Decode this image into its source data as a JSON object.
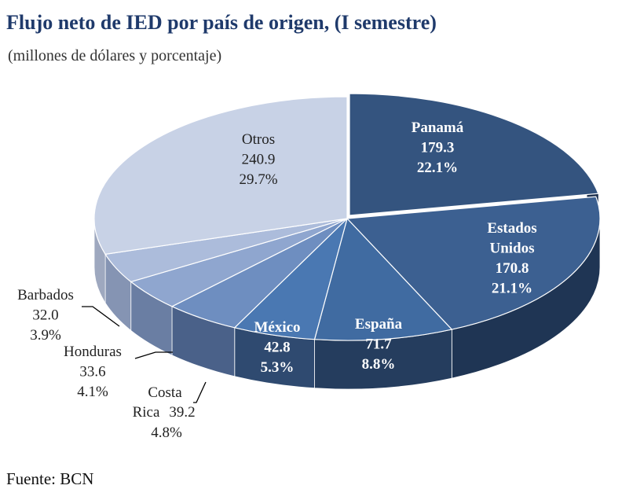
{
  "title": "Flujo neto de IED por país de origen, (I semestre)",
  "subtitle": "(millones de dólares y porcentaje)",
  "source": "Fuente: BCN",
  "chart_data": {
    "type": "pie",
    "title": "Flujo neto de IED por país de origen, (I semestre)",
    "subtitle": "(millones de dólares y porcentaje)",
    "unit": "millones de dólares",
    "slices": [
      {
        "name": "Panamá",
        "value": 179.3,
        "percent": "22.1%",
        "value_text": "179.3",
        "label_lines": [
          "Panamá"
        ],
        "color": "#34547f",
        "side": "#1c2f4d",
        "text_color": "#ffffff",
        "bold": true
      },
      {
        "name": "Estados Unidos",
        "value": 170.8,
        "percent": "21.1%",
        "value_text": "170.8",
        "label_lines": [
          "Estados",
          "Unidos"
        ],
        "color": "#3c6091",
        "side": "#1f3554",
        "text_color": "#ffffff",
        "bold": true
      },
      {
        "name": "España",
        "value": 71.7,
        "percent": "8.8%",
        "value_text": "71.7",
        "label_lines": [
          "España"
        ],
        "color": "#406ba1",
        "side": "#253d5e",
        "text_color": "#ffffff",
        "bold": true
      },
      {
        "name": "México",
        "value": 42.8,
        "percent": "5.3%",
        "value_text": "42.8",
        "label_lines": [
          "México"
        ],
        "color": "#4a78b2",
        "side": "#2f4a70",
        "text_color": "#ffffff",
        "bold": true
      },
      {
        "name": "Costa Rica",
        "value": 39.2,
        "percent": "4.8%",
        "value_text": "39.2",
        "label_lines": [
          "Costa",
          "Rica"
        ],
        "color": "#6e8ec0",
        "side": "#4a6189",
        "text_color": "#222222",
        "bold": false
      },
      {
        "name": "Honduras",
        "value": 33.6,
        "percent": "4.1%",
        "value_text": "33.6",
        "label_lines": [
          "Honduras"
        ],
        "color": "#8fa6cf",
        "side": "#6a7ea3",
        "text_color": "#222222",
        "bold": false
      },
      {
        "name": "Barbados",
        "value": 32.0,
        "percent": "3.9%",
        "value_text": "32.0",
        "label_lines": [
          "Barbados"
        ],
        "color": "#acbcdb",
        "side": "#8594b3",
        "text_color": "#222222",
        "bold": false
      },
      {
        "name": "Otros",
        "value": 240.9,
        "percent": "29.7%",
        "value_text": "240.9",
        "label_lines": [
          "Otros"
        ],
        "color": "#c8d2e6",
        "side": "#9ea8bf",
        "text_color": "#222222",
        "bold": false
      }
    ],
    "start": "12 o'clock",
    "direction": "clockwise",
    "style": "3d-exploded-first-slice"
  }
}
